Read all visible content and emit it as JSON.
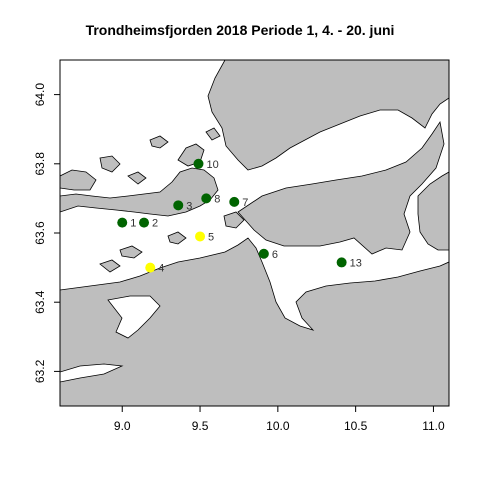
{
  "title": "Trondheimsfjorden 2018 Periode 1, 4. - 20. juni",
  "map": {
    "xlim": [
      8.6,
      11.1
    ],
    "ylim": [
      63.1,
      64.1
    ],
    "x_ticks": [
      "9.0",
      "9.5",
      "10.0",
      "10.5",
      "11.0"
    ],
    "y_ticks": [
      "63.2",
      "63.4",
      "63.6",
      "63.8",
      "64.0"
    ],
    "land_color": "#bebebe",
    "water_color": "#ffffff",
    "coast_color": "#000000"
  },
  "legend_colors": {
    "green": "#006400",
    "yellow": "#ffff00"
  },
  "stations": [
    {
      "label": "1",
      "lon": 9.0,
      "lat": 63.63,
      "color": "green"
    },
    {
      "label": "2",
      "lon": 9.14,
      "lat": 63.63,
      "color": "green"
    },
    {
      "label": "3",
      "lon": 9.36,
      "lat": 63.68,
      "color": "green"
    },
    {
      "label": "4",
      "lon": 9.18,
      "lat": 63.5,
      "color": "yellow"
    },
    {
      "label": "5",
      "lon": 9.5,
      "lat": 63.59,
      "color": "yellow"
    },
    {
      "label": "6",
      "lon": 9.91,
      "lat": 63.54,
      "color": "green"
    },
    {
      "label": "7",
      "lon": 9.72,
      "lat": 63.69,
      "color": "green"
    },
    {
      "label": "8",
      "lon": 9.54,
      "lat": 63.7,
      "color": "green"
    },
    {
      "label": "10",
      "lon": 9.49,
      "lat": 63.8,
      "color": "green"
    },
    {
      "label": "13",
      "lon": 10.41,
      "lat": 63.515,
      "color": "green"
    }
  ]
}
